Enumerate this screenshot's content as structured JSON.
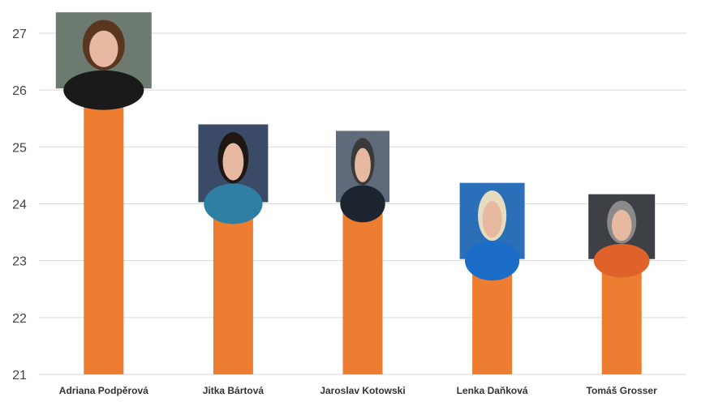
{
  "chart_data": {
    "type": "bar",
    "categories": [
      "Adriana Podpěrová",
      "Jitka Bártová",
      "Jaroslav Kotowski",
      "Lenka Daňková",
      "Tomáš Grosser"
    ],
    "values": [
      26,
      24,
      24,
      23,
      23
    ],
    "ylim": [
      21,
      27
    ],
    "yticks": [
      "21",
      "22",
      "23",
      "24",
      "25",
      "26",
      "27"
    ],
    "grid": true,
    "legend": "none",
    "bar_color": "#ED7D31",
    "photos": [
      {
        "icon": "portrait-young-woman-long-brown-hair"
      },
      {
        "icon": "portrait-woman-dark-curly-hair"
      },
      {
        "icon": "portrait-man-bald-beard"
      },
      {
        "icon": "portrait-woman-blonde-hair"
      },
      {
        "icon": "portrait-man-glasses-orange-robe"
      }
    ]
  }
}
